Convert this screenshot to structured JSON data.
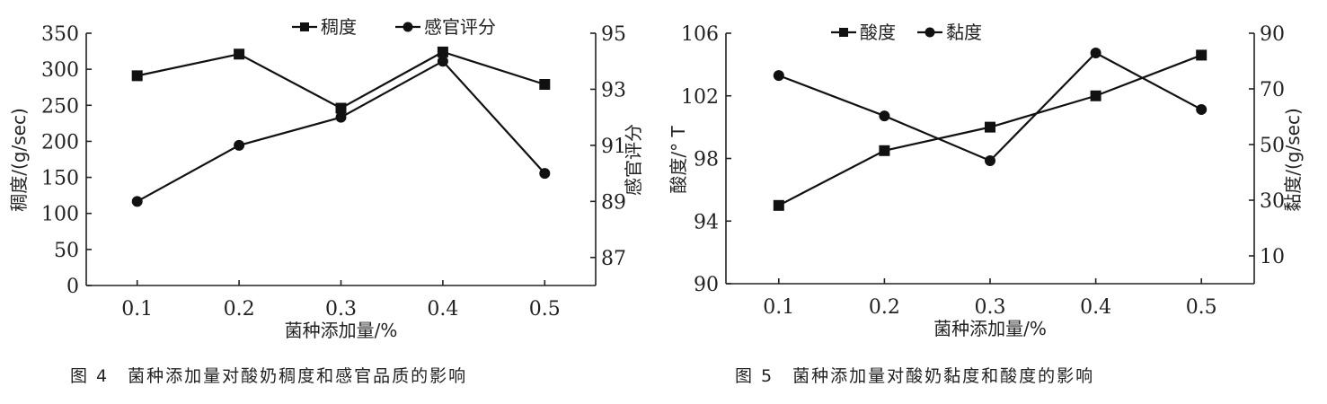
{
  "chart_data": [
    {
      "type": "line",
      "caption": "图 4　菌种添加量对酸奶稠度和感官品质的影响",
      "xlabel": "菌种添加量/%",
      "ylabel": "稠度/(g/sec)",
      "y2label": "感官评分",
      "x": [
        0.1,
        0.2,
        0.3,
        0.4,
        0.5
      ],
      "xticks": [
        "0.1",
        "0.2",
        "0.3",
        "0.4",
        "0.5"
      ],
      "xlim": [
        0.05,
        0.55
      ],
      "ylim": [
        0,
        350
      ],
      "yticks": [
        0,
        50,
        100,
        150,
        200,
        250,
        300,
        350
      ],
      "y2lim": [
        86,
        95
      ],
      "y2ticks": [
        87,
        89,
        91,
        93,
        95
      ],
      "legend": "top",
      "grid": false,
      "series": [
        {
          "name": "稠度",
          "marker": "square",
          "axis": "left",
          "values": [
            291,
            321,
            246,
            324,
            279
          ]
        },
        {
          "name": "感官评分",
          "marker": "circle",
          "axis": "right",
          "values": [
            89.0,
            91.0,
            92.0,
            94.0,
            90.0
          ]
        }
      ]
    },
    {
      "type": "line",
      "caption": "图 5　菌种添加量对酸奶黏度和酸度的影响",
      "xlabel": "菌种添加量/%",
      "ylabel": "酸度/° T",
      "y2label": "黏度/(g/sec)",
      "x": [
        0.1,
        0.2,
        0.3,
        0.4,
        0.5
      ],
      "xticks": [
        "0.1",
        "0.2",
        "0.3",
        "0.4",
        "0.5"
      ],
      "xlim": [
        0.05,
        0.55
      ],
      "ylim": [
        90,
        106
      ],
      "yticks": [
        90,
        94,
        98,
        102,
        106
      ],
      "y2lim": [
        0,
        90
      ],
      "y2ticks": [
        10,
        30,
        50,
        70,
        90
      ],
      "legend": "top",
      "grid": false,
      "series": [
        {
          "name": "酸度",
          "marker": "square",
          "axis": "left",
          "values": [
            95.0,
            98.5,
            100.0,
            102.0,
            104.6
          ]
        },
        {
          "name": "黏度",
          "marker": "circle",
          "axis": "right",
          "values": [
            74.8,
            60.3,
            44.2,
            82.9,
            62.6
          ]
        }
      ]
    }
  ]
}
